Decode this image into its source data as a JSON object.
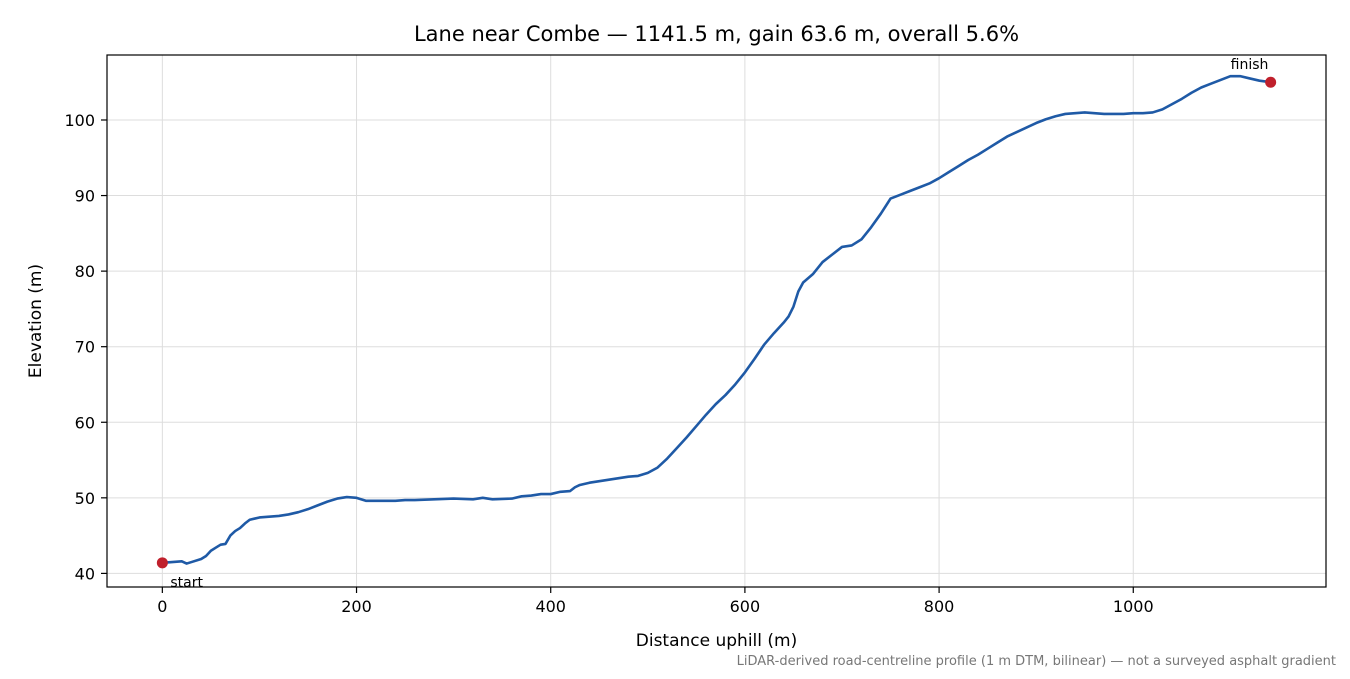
{
  "chart_data": {
    "type": "line",
    "title": "Lane near Combe — 1141.5 m, gain 63.6 m, overall 5.6%",
    "xlabel": "Distance uphill (m)",
    "ylabel": "Elevation (m)",
    "xlim": [
      -57,
      1198.5
    ],
    "ylim": [
      38.2,
      108.6
    ],
    "x_ticks": [
      0,
      200,
      400,
      600,
      800,
      1000
    ],
    "y_ticks": [
      40,
      50,
      60,
      70,
      80,
      90,
      100
    ],
    "x_tick_labels": [
      "0",
      "200",
      "400",
      "600",
      "800",
      "1000"
    ],
    "y_tick_labels": [
      "40",
      "50",
      "60",
      "70",
      "80",
      "90",
      "100"
    ],
    "grid": true,
    "series": [
      {
        "color": "#1f5aa6",
        "points": [
          [
            0,
            41.4
          ],
          [
            10,
            41.5
          ],
          [
            20,
            41.6
          ],
          [
            25,
            41.3
          ],
          [
            30,
            41.5
          ],
          [
            40,
            41.9
          ],
          [
            45,
            42.3
          ],
          [
            50,
            43.0
          ],
          [
            55,
            43.4
          ],
          [
            60,
            43.8
          ],
          [
            65,
            43.9
          ],
          [
            70,
            45.0
          ],
          [
            75,
            45.6
          ],
          [
            80,
            46.0
          ],
          [
            85,
            46.6
          ],
          [
            90,
            47.1
          ],
          [
            100,
            47.4
          ],
          [
            110,
            47.5
          ],
          [
            120,
            47.6
          ],
          [
            130,
            47.8
          ],
          [
            140,
            48.1
          ],
          [
            150,
            48.5
          ],
          [
            160,
            49.0
          ],
          [
            170,
            49.5
          ],
          [
            180,
            49.9
          ],
          [
            190,
            50.1
          ],
          [
            200,
            50.0
          ],
          [
            210,
            49.6
          ],
          [
            220,
            49.6
          ],
          [
            230,
            49.6
          ],
          [
            240,
            49.6
          ],
          [
            250,
            49.7
          ],
          [
            260,
            49.7
          ],
          [
            280,
            49.8
          ],
          [
            300,
            49.9
          ],
          [
            320,
            49.8
          ],
          [
            330,
            50.0
          ],
          [
            340,
            49.8
          ],
          [
            360,
            49.9
          ],
          [
            370,
            50.2
          ],
          [
            380,
            50.3
          ],
          [
            390,
            50.5
          ],
          [
            400,
            50.5
          ],
          [
            410,
            50.8
          ],
          [
            420,
            50.9
          ],
          [
            425,
            51.4
          ],
          [
            430,
            51.7
          ],
          [
            440,
            52.0
          ],
          [
            450,
            52.2
          ],
          [
            460,
            52.4
          ],
          [
            470,
            52.6
          ],
          [
            480,
            52.8
          ],
          [
            490,
            52.9
          ],
          [
            500,
            53.3
          ],
          [
            510,
            54.0
          ],
          [
            520,
            55.2
          ],
          [
            530,
            56.6
          ],
          [
            540,
            58.0
          ],
          [
            550,
            59.5
          ],
          [
            560,
            61.0
          ],
          [
            570,
            62.4
          ],
          [
            580,
            63.6
          ],
          [
            590,
            65.0
          ],
          [
            600,
            66.6
          ],
          [
            610,
            68.4
          ],
          [
            620,
            70.3
          ],
          [
            630,
            71.8
          ],
          [
            640,
            73.2
          ],
          [
            645,
            74.0
          ],
          [
            650,
            75.3
          ],
          [
            655,
            77.3
          ],
          [
            660,
            78.5
          ],
          [
            670,
            79.6
          ],
          [
            680,
            81.2
          ],
          [
            690,
            82.2
          ],
          [
            700,
            83.2
          ],
          [
            710,
            83.4
          ],
          [
            720,
            84.2
          ],
          [
            730,
            85.8
          ],
          [
            740,
            87.6
          ],
          [
            750,
            89.6
          ],
          [
            760,
            90.1
          ],
          [
            770,
            90.6
          ],
          [
            780,
            91.1
          ],
          [
            790,
            91.6
          ],
          [
            800,
            92.3
          ],
          [
            810,
            93.1
          ],
          [
            820,
            93.9
          ],
          [
            830,
            94.7
          ],
          [
            840,
            95.4
          ],
          [
            850,
            96.2
          ],
          [
            860,
            97.0
          ],
          [
            870,
            97.8
          ],
          [
            880,
            98.4
          ],
          [
            890,
            99.0
          ],
          [
            900,
            99.6
          ],
          [
            910,
            100.1
          ],
          [
            920,
            100.5
          ],
          [
            930,
            100.8
          ],
          [
            940,
            100.9
          ],
          [
            950,
            101.0
          ],
          [
            960,
            100.9
          ],
          [
            970,
            100.8
          ],
          [
            980,
            100.8
          ],
          [
            990,
            100.8
          ],
          [
            1000,
            100.9
          ],
          [
            1010,
            100.9
          ],
          [
            1020,
            101.0
          ],
          [
            1030,
            101.4
          ],
          [
            1040,
            102.1
          ],
          [
            1050,
            102.8
          ],
          [
            1060,
            103.6
          ],
          [
            1070,
            104.3
          ],
          [
            1080,
            104.8
          ],
          [
            1090,
            105.3
          ],
          [
            1100,
            105.8
          ],
          [
            1110,
            105.8
          ],
          [
            1120,
            105.5
          ],
          [
            1130,
            105.2
          ],
          [
            1141.5,
            105.0
          ]
        ]
      }
    ],
    "markers": [
      {
        "x": 0,
        "y": 41.4,
        "label": "start",
        "color": "#c0202c"
      },
      {
        "x": 1141.5,
        "y": 105.0,
        "label": "finish",
        "color": "#c0202c"
      }
    ],
    "footer_note": "LiDAR-derived road-centreline profile (1 m DTM, bilinear) — not a surveyed asphalt gradient"
  }
}
